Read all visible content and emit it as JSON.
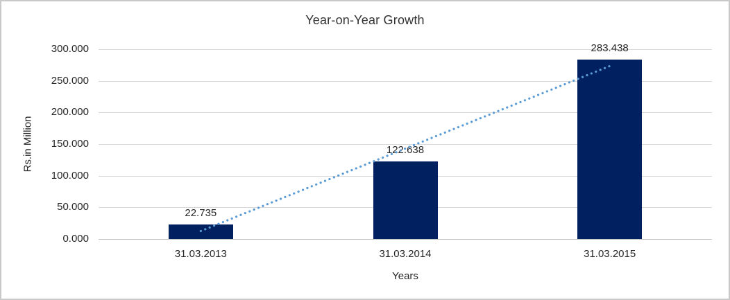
{
  "chart_data": {
    "type": "bar",
    "title": "Year-on-Year Growth",
    "xlabel": "Years",
    "ylabel": "Rs.in Million",
    "categories": [
      "31.03.2013",
      "31.03.2014",
      "31.03.2015"
    ],
    "values": [
      22.735,
      122.638,
      283.438
    ],
    "data_labels": [
      "22.735",
      "122.638",
      "283.438"
    ],
    "ylim": [
      0,
      300
    ],
    "ytick_values": [
      0,
      50,
      100,
      150,
      200,
      250,
      300
    ],
    "ytick_labels": [
      "0.000",
      "50.000",
      "100.000",
      "150.000",
      "200.000",
      "250.000",
      "300.000"
    ],
    "grid": true,
    "legend": "none",
    "trendline": {
      "type": "linear",
      "style": "dotted"
    },
    "colors": {
      "bar": "#002060",
      "trendline": "#5b9bd5",
      "gridline": "#d9d9d9",
      "axis_line": "#c6c6c6",
      "text": "#262626",
      "title_text": "#333333",
      "canvas_border": "#c9c9c9",
      "background": "#ffffff"
    }
  }
}
